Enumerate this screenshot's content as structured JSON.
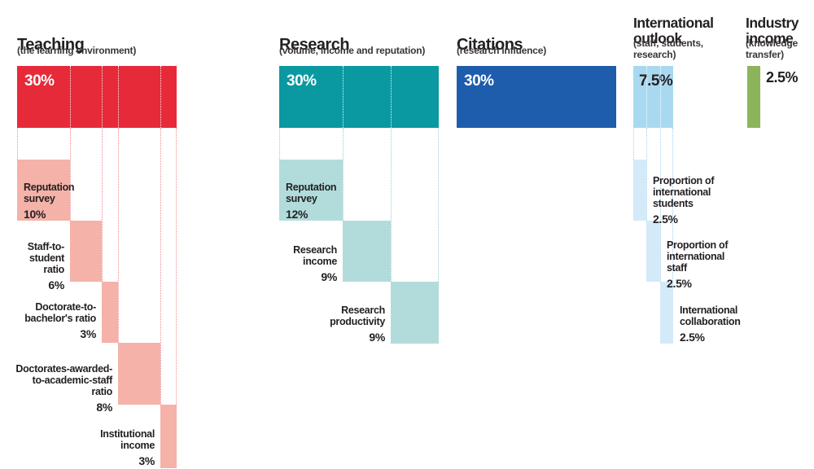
{
  "chart_data": {
    "type": "bar",
    "variant": "weighted-breakdown-waterfall",
    "unit": "%",
    "total": 100,
    "sections": [
      {
        "name": "Teaching",
        "subtitle": "(the learning environment)",
        "weight": "30%",
        "weight_value": 30,
        "color": "#E62A39",
        "item_color": "#F4B2A9",
        "items": [
          {
            "label": "Reputation\nsurvey",
            "value": "10%",
            "pct": 10
          },
          {
            "label": "Staff-to-\nstudent\nratio",
            "value": "6%",
            "pct": 6
          },
          {
            "label": "Doctorate-to-\nbachelor's ratio",
            "value": "3%",
            "pct": 3
          },
          {
            "label": "Doctorates-awarded-\nto-academic-staff\nratio",
            "value": "8%",
            "pct": 8
          },
          {
            "label": "Institutional\nincome",
            "value": "3%",
            "pct": 3
          }
        ]
      },
      {
        "name": "Research",
        "subtitle": "(volume, income and reputation)",
        "weight": "30%",
        "weight_value": 30,
        "color": "#0A99A1",
        "item_color": "#B2DCDC",
        "items": [
          {
            "label": "Reputation\nsurvey",
            "value": "12%",
            "pct": 12
          },
          {
            "label": "Research\nincome",
            "value": "9%",
            "pct": 9
          },
          {
            "label": "Research\nproductivity",
            "value": "9%",
            "pct": 9
          }
        ]
      },
      {
        "name": "Citations",
        "subtitle": "(research influence)",
        "weight": "30%",
        "weight_value": 30,
        "color": "#1E5CAC",
        "items": []
      },
      {
        "name": "International\noutlook",
        "subtitle": "(staff, students,\nresearch)",
        "weight": "7.5%",
        "weight_value": 7.5,
        "color": "#A9D9F1",
        "item_color": "#D4EAF9",
        "items": [
          {
            "label": "Proportion of\ninternational\nstudents",
            "value": "2.5%",
            "pct": 2.5
          },
          {
            "label": "Proportion of\ninternational\nstaff",
            "value": "2.5%",
            "pct": 2.5
          },
          {
            "label": "International\ncollaboration",
            "value": "2.5%",
            "pct": 2.5
          }
        ]
      },
      {
        "name": "Industry\nincome",
        "subtitle": "(knowledge\ntransfer)",
        "weight": "2.5%",
        "weight_value": 2.5,
        "color": "#8CB45A",
        "items": []
      }
    ]
  }
}
